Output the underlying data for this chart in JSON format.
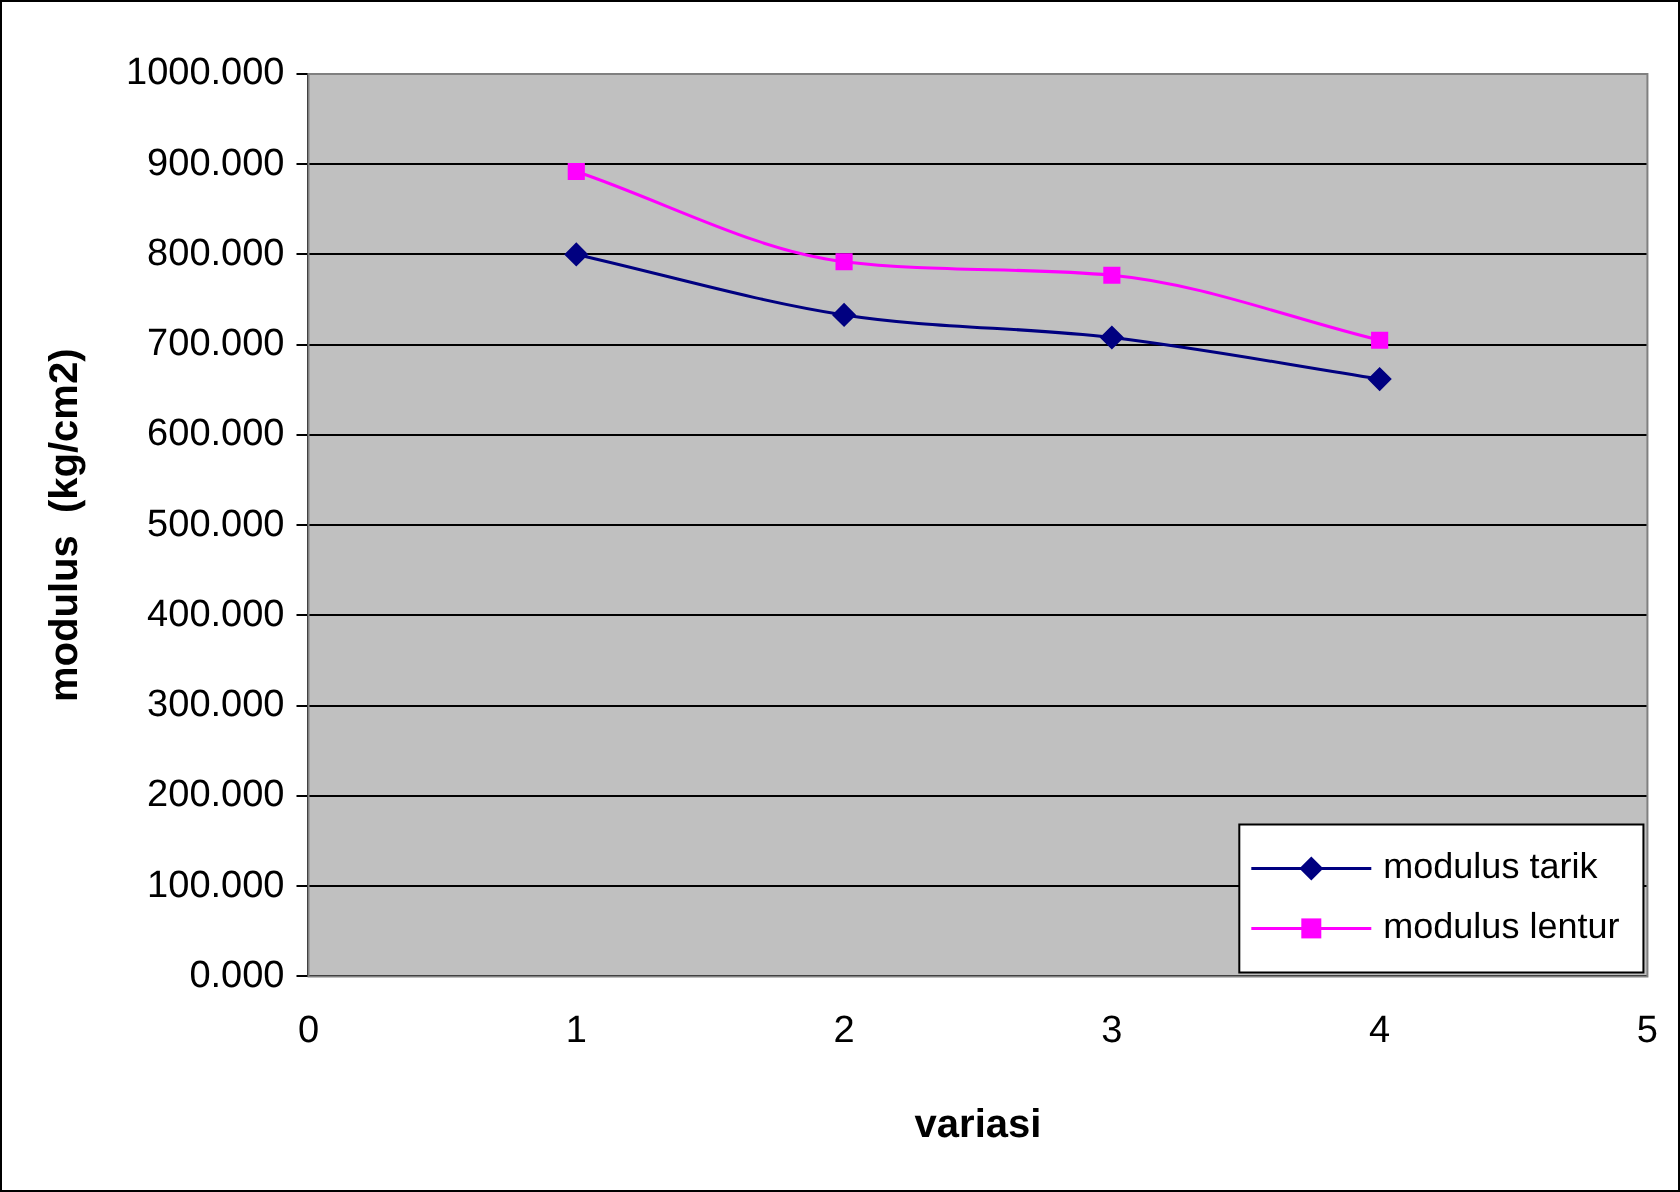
{
  "chart_data": {
    "type": "line",
    "xlabel": "variasi",
    "ylabel": "modulus  (kg/cm2)",
    "x": [
      1,
      2,
      3,
      4
    ],
    "series": [
      {
        "name": "modulus tarik",
        "color": "#000080",
        "values": [
          800,
          733,
          708,
          662
        ],
        "marker": "diamond"
      },
      {
        "name": "modulus lentur",
        "color": "#ff00ff",
        "values": [
          892,
          792,
          777,
          705
        ],
        "marker": "square"
      }
    ],
    "xlim": [
      0,
      5
    ],
    "xticks": [
      0,
      1,
      2,
      3,
      4,
      5
    ],
    "ylim": [
      0,
      1000
    ],
    "yticks": [
      {
        "value": 0,
        "label": "0.000"
      },
      {
        "value": 100,
        "label": "100.000"
      },
      {
        "value": 200,
        "label": "200.000"
      },
      {
        "value": 300,
        "label": "300.000"
      },
      {
        "value": 400,
        "label": "400.000"
      },
      {
        "value": 500,
        "label": "500.000"
      },
      {
        "value": 600,
        "label": "600.000"
      },
      {
        "value": 700,
        "label": "700.000"
      },
      {
        "value": 800,
        "label": "800.000"
      },
      {
        "value": 900,
        "label": "900.000"
      },
      {
        "value": 1000,
        "label": "1000.000"
      }
    ],
    "grid": "y",
    "legend": "bottom right"
  }
}
